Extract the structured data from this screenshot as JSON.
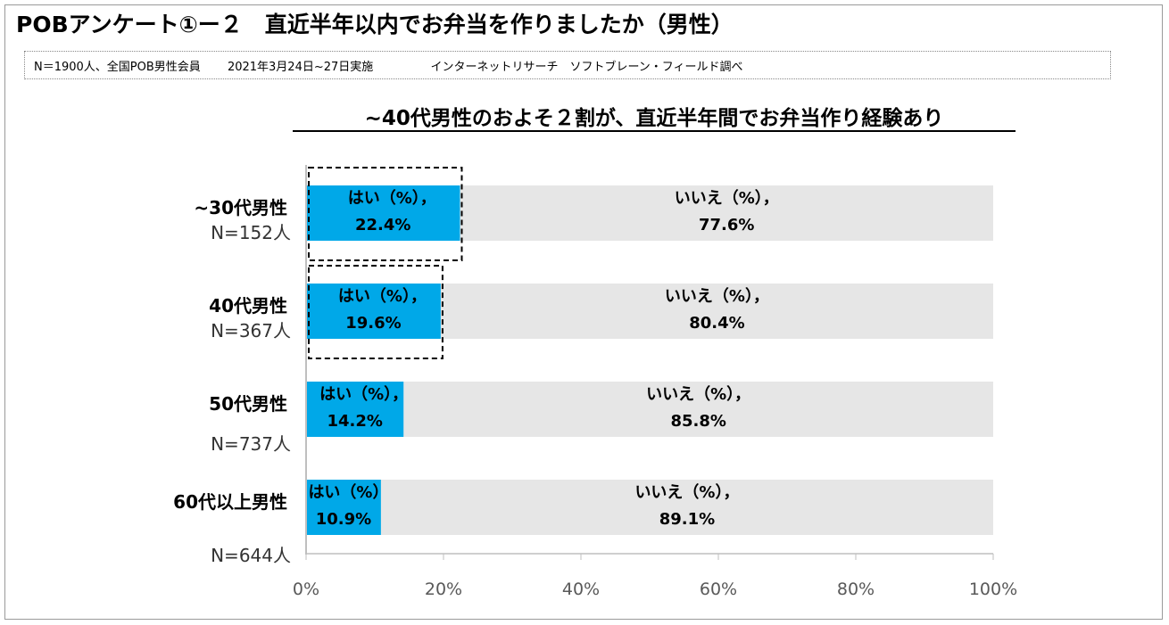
{
  "header": {
    "title": "POBアンケート①ー２　直近半年以内でお弁当を作りましたか（男性）",
    "note_sample": "N＝1900人、全国POB男性会員",
    "note_date": "2021年3月24日~27日実施",
    "note_source": "インターネットリサーチ　ソフトブレーン・フィールド調べ"
  },
  "chart_data": {
    "type": "bar",
    "stacked": true,
    "orientation": "horizontal",
    "title": "~40代男性のおよそ２割が、直近半年間でお弁当作り経験あり",
    "categories": [
      "~30代男性",
      "40代男性",
      "50代男性",
      "60代以上男性"
    ],
    "sample_sizes": [
      "N=152人",
      "N=367人",
      "N=737人",
      "N=644人"
    ],
    "series": [
      {
        "name": "はい（%）",
        "color": "#00a8e8",
        "values": [
          22.4,
          19.6,
          14.2,
          10.9
        ]
      },
      {
        "name": "いいえ（%）",
        "color": "#e6e6e6",
        "values": [
          77.6,
          80.4,
          85.8,
          89.1
        ]
      }
    ],
    "data_label_format": "{name}，{value}%",
    "xlim": [
      0,
      100
    ],
    "xticks": [
      "0%",
      "20%",
      "40%",
      "60%",
      "80%",
      "100%"
    ],
    "highlighted_categories": [
      "~30代男性",
      "40代男性"
    ]
  }
}
